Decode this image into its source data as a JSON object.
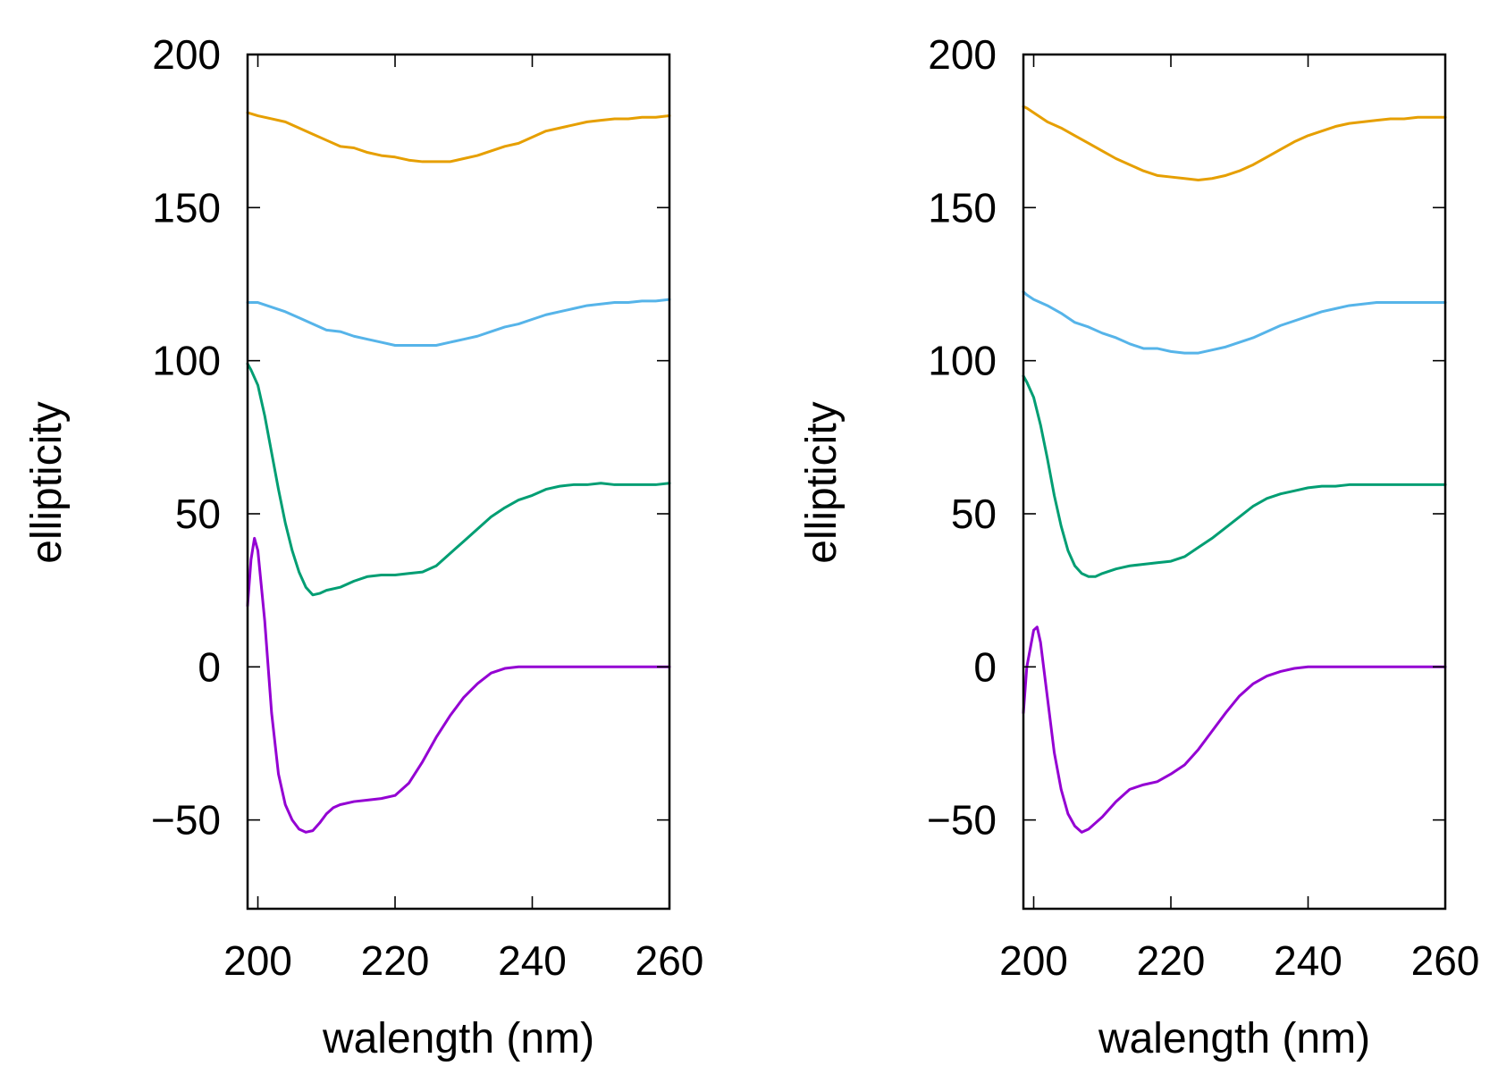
{
  "chart_data": [
    {
      "type": "line",
      "title": "",
      "xlabel": "walength (nm)",
      "ylabel": "ellipticity",
      "xlim": [
        198.5,
        260
      ],
      "ylim": [
        -79,
        200
      ],
      "xticks": [
        200,
        220,
        240,
        260
      ],
      "yticks": [
        200,
        150,
        100,
        50,
        0,
        -50
      ],
      "xtick_labels": [
        "200",
        "220",
        "240",
        "260"
      ],
      "ytick_labels": [
        "200",
        "150",
        "100",
        "50",
        "0",
        "−50"
      ],
      "grid": false,
      "series": [
        {
          "name": "orange",
          "color": "#e69f00",
          "x": [
            198.5,
            200,
            202,
            204,
            206,
            208,
            210,
            212,
            214,
            216,
            218,
            220,
            222,
            224,
            226,
            228,
            230,
            232,
            234,
            236,
            238,
            240,
            242,
            244,
            246,
            248,
            250,
            252,
            254,
            256,
            258,
            260
          ],
          "y": [
            181,
            180,
            179,
            178,
            176,
            174,
            172,
            170,
            169.5,
            168,
            167,
            166.5,
            165.5,
            165,
            165,
            165,
            166,
            167,
            168.5,
            170,
            171,
            173,
            175,
            176,
            177,
            178,
            178.5,
            179,
            179,
            179.5,
            179.5,
            180
          ]
        },
        {
          "name": "blue",
          "color": "#56b4e9",
          "x": [
            198.5,
            200,
            202,
            204,
            206,
            208,
            210,
            212,
            214,
            216,
            218,
            220,
            222,
            224,
            226,
            228,
            230,
            232,
            234,
            236,
            238,
            240,
            242,
            244,
            246,
            248,
            250,
            252,
            254,
            256,
            258,
            260
          ],
          "y": [
            119,
            119,
            117.5,
            116,
            114,
            112,
            110,
            109.5,
            108,
            107,
            106,
            105,
            105,
            105,
            105,
            106,
            107,
            108,
            109.5,
            111,
            112,
            113.5,
            115,
            116,
            117,
            118,
            118.5,
            119,
            119,
            119.5,
            119.5,
            120
          ]
        },
        {
          "name": "green",
          "color": "#009e73",
          "x": [
            198.5,
            199,
            200,
            201,
            202,
            203,
            204,
            205,
            206,
            207,
            208,
            209,
            210,
            212,
            214,
            216,
            218,
            220,
            222,
            224,
            226,
            228,
            230,
            232,
            234,
            236,
            238,
            240,
            242,
            244,
            246,
            248,
            250,
            252,
            254,
            256,
            258,
            260
          ],
          "y": [
            99,
            97,
            92,
            82,
            70,
            58,
            47,
            38,
            31,
            26,
            23.5,
            24,
            25,
            26,
            28,
            29.5,
            30,
            30,
            30.5,
            31,
            33,
            37,
            41,
            45,
            49,
            52,
            54.5,
            56,
            58,
            59,
            59.5,
            59.5,
            60,
            59.5,
            59.5,
            59.5,
            59.5,
            60
          ]
        },
        {
          "name": "purple",
          "color": "#9400d3",
          "x": [
            198.5,
            199,
            199.5,
            200,
            201,
            202,
            203,
            204,
            205,
            206,
            207,
            208,
            209,
            210,
            211,
            212,
            214,
            216,
            218,
            220,
            222,
            224,
            226,
            228,
            230,
            232,
            234,
            236,
            238,
            240,
            242,
            244,
            246,
            248,
            250,
            252,
            254,
            256,
            258,
            260
          ],
          "y": [
            20,
            35,
            42,
            38,
            15,
            -15,
            -35,
            -45,
            -50,
            -53,
            -54,
            -53.5,
            -51,
            -48,
            -46,
            -45,
            -44,
            -43.5,
            -43,
            -42,
            -38,
            -31,
            -23,
            -16,
            -10,
            -5.5,
            -2,
            -0.5,
            0,
            0,
            0,
            0,
            0,
            0,
            0,
            0,
            0,
            0,
            0,
            0
          ]
        }
      ]
    },
    {
      "type": "line",
      "title": "",
      "xlabel": "walength (nm)",
      "ylabel": "ellipticity",
      "xlim": [
        198.5,
        260
      ],
      "ylim": [
        -79,
        200
      ],
      "xticks": [
        200,
        220,
        240,
        260
      ],
      "yticks": [
        200,
        150,
        100,
        50,
        0,
        -50
      ],
      "xtick_labels": [
        "200",
        "220",
        "240",
        "260"
      ],
      "ytick_labels": [
        "200",
        "150",
        "100",
        "50",
        "0",
        "−50"
      ],
      "grid": false,
      "series": [
        {
          "name": "orange",
          "color": "#e69f00",
          "x": [
            198.5,
            199,
            200,
            202,
            204,
            206,
            208,
            210,
            212,
            214,
            216,
            218,
            220,
            222,
            224,
            226,
            228,
            230,
            232,
            234,
            236,
            238,
            240,
            242,
            244,
            246,
            248,
            250,
            252,
            254,
            256,
            258,
            260
          ],
          "y": [
            183,
            182.5,
            181,
            178,
            176,
            173.5,
            171,
            168.5,
            166,
            164,
            162,
            160.5,
            160,
            159.5,
            159,
            159.5,
            160.5,
            162,
            164,
            166.5,
            169,
            171.5,
            173.5,
            175,
            176.5,
            177.5,
            178,
            178.5,
            179,
            179,
            179.5,
            179.5,
            179.5
          ]
        },
        {
          "name": "blue",
          "color": "#56b4e9",
          "x": [
            198.5,
            199,
            200,
            202,
            204,
            206,
            208,
            210,
            212,
            214,
            216,
            218,
            220,
            222,
            224,
            226,
            228,
            230,
            232,
            234,
            236,
            238,
            240,
            242,
            244,
            246,
            248,
            250,
            252,
            254,
            256,
            258,
            260
          ],
          "y": [
            122.5,
            121.5,
            120,
            118,
            115.5,
            112.5,
            111,
            109,
            107.5,
            105.5,
            104,
            104,
            103,
            102.5,
            102.5,
            103.5,
            104.5,
            106,
            107.5,
            109.5,
            111.5,
            113,
            114.5,
            116,
            117,
            118,
            118.5,
            119,
            119,
            119,
            119,
            119,
            119
          ]
        },
        {
          "name": "green",
          "color": "#009e73",
          "x": [
            198.5,
            199,
            200,
            201,
            202,
            203,
            204,
            205,
            206,
            207,
            208,
            209,
            210,
            212,
            214,
            216,
            218,
            220,
            222,
            224,
            226,
            228,
            230,
            232,
            234,
            236,
            238,
            240,
            242,
            244,
            246,
            248,
            250,
            252,
            254,
            256,
            258,
            260
          ],
          "y": [
            95,
            93,
            88,
            79,
            68,
            56,
            46,
            38,
            33,
            30.5,
            29.5,
            29.5,
            30.5,
            32,
            33,
            33.5,
            34,
            34.5,
            36,
            39,
            42,
            45.5,
            49,
            52.5,
            55,
            56.5,
            57.5,
            58.5,
            59,
            59,
            59.5,
            59.5,
            59.5,
            59.5,
            59.5,
            59.5,
            59.5,
            59.5
          ]
        },
        {
          "name": "purple",
          "color": "#9400d3",
          "x": [
            198.5,
            199,
            200,
            200.5,
            201,
            202,
            203,
            204,
            205,
            206,
            207,
            208,
            209,
            210,
            212,
            214,
            216,
            218,
            220,
            222,
            224,
            226,
            228,
            230,
            232,
            234,
            236,
            238,
            240,
            242,
            244,
            246,
            248,
            250,
            252,
            254,
            256,
            258,
            260
          ],
          "y": [
            -15,
            0,
            12,
            13,
            8,
            -10,
            -28,
            -40,
            -48,
            -52,
            -54,
            -53,
            -51,
            -49,
            -44,
            -40,
            -38.5,
            -37.5,
            -35,
            -32,
            -27,
            -21,
            -15,
            -9.5,
            -5.5,
            -3,
            -1.5,
            -0.5,
            0,
            0,
            0,
            0,
            0,
            0,
            0,
            0,
            0,
            0,
            0
          ]
        }
      ]
    }
  ]
}
